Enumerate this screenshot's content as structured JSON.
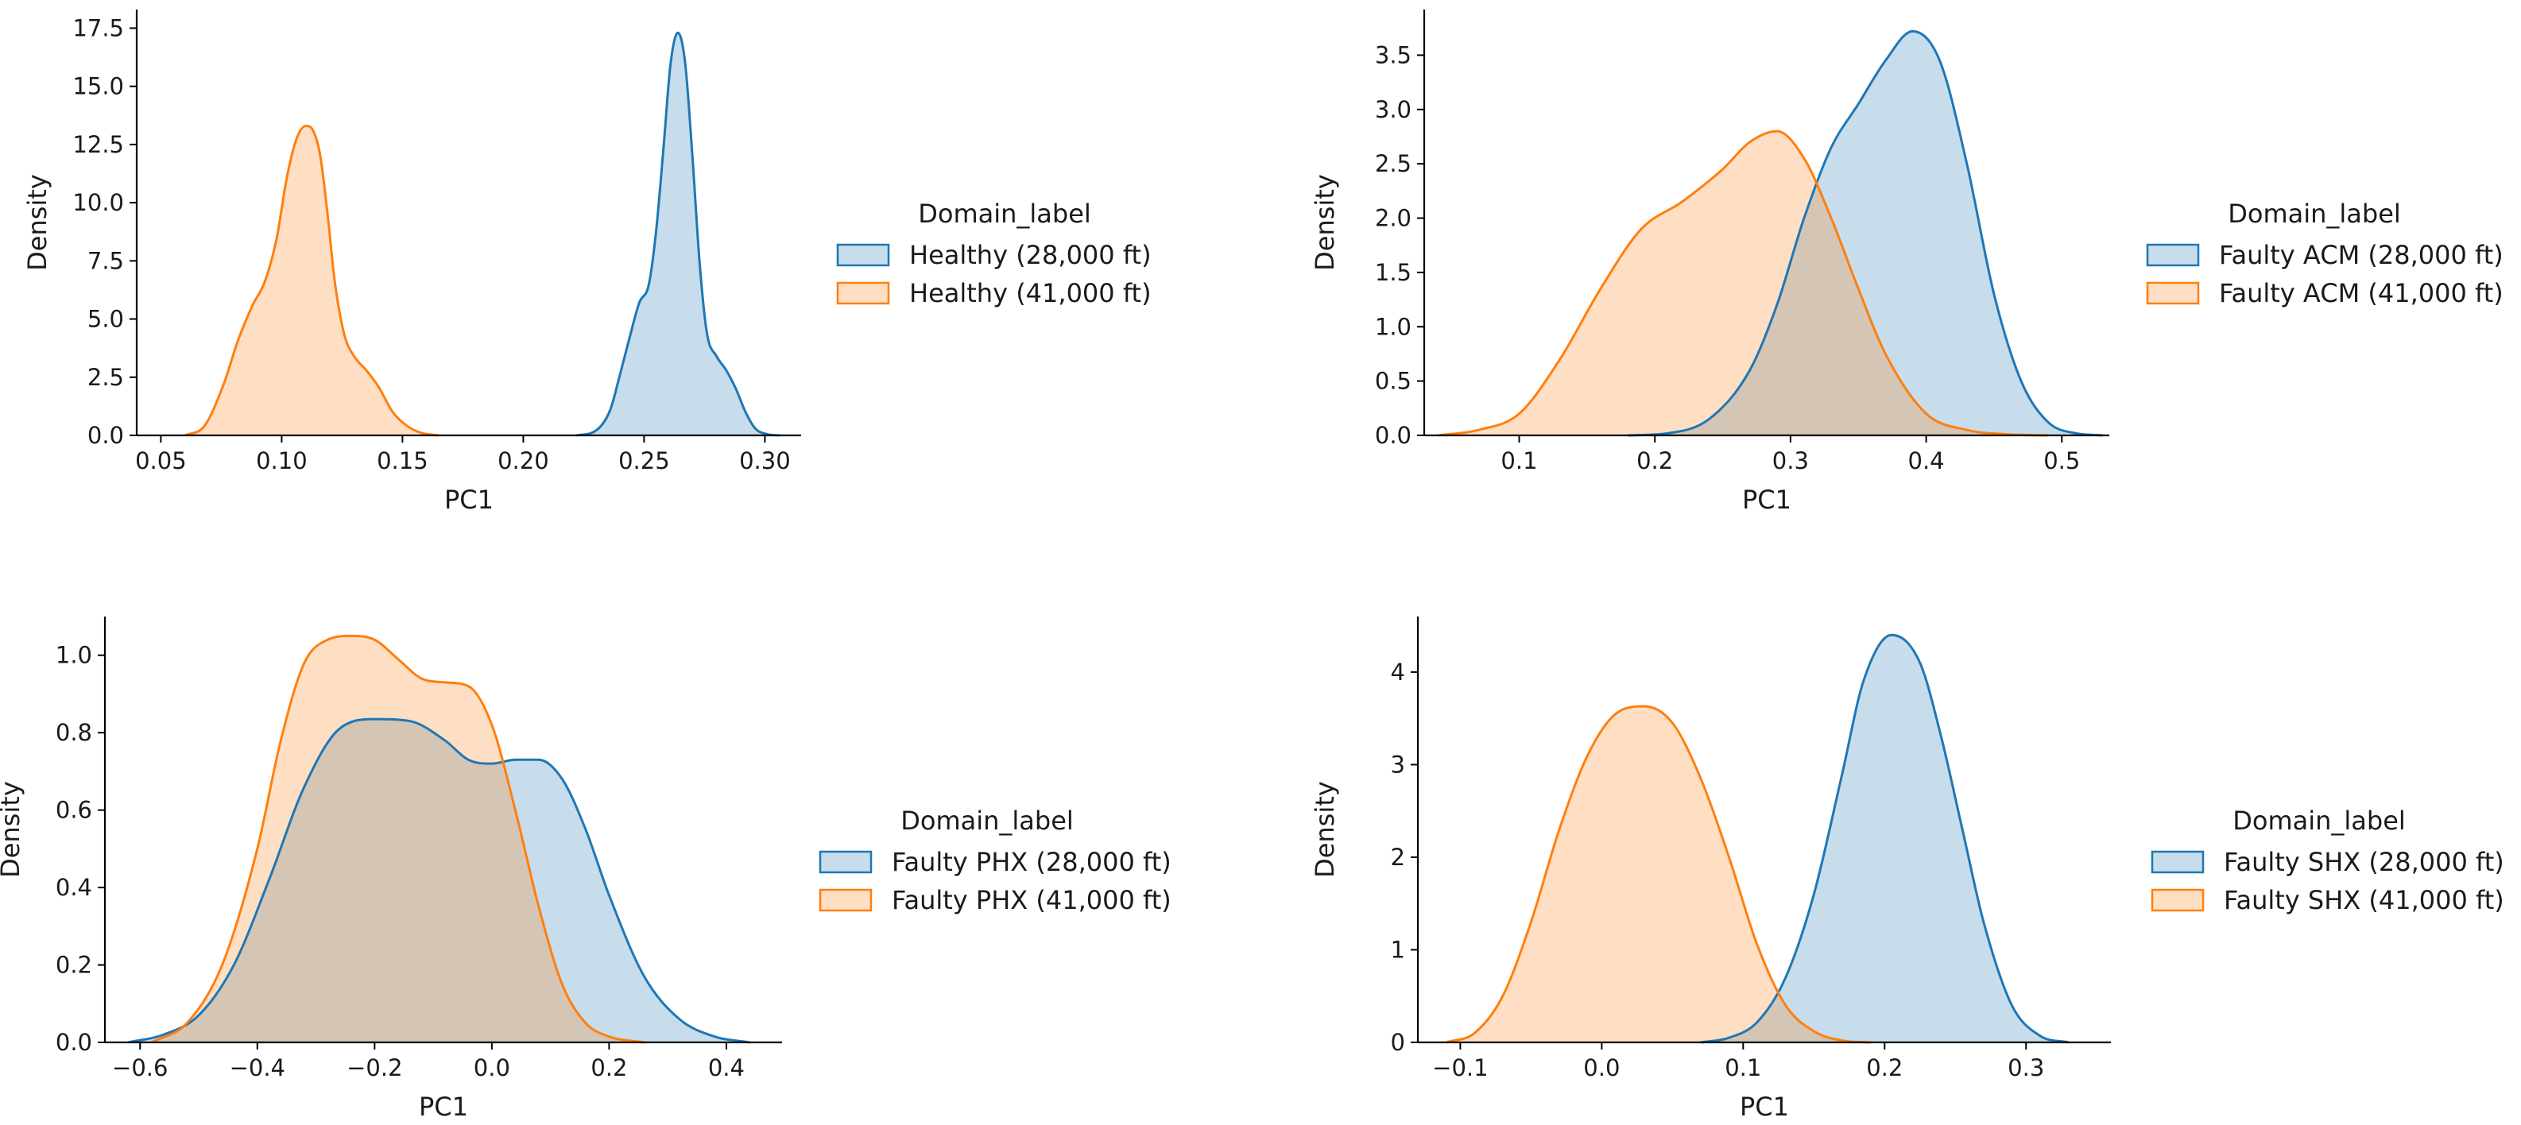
{
  "chart_data": [
    {
      "type": "area",
      "subtype": "kde",
      "xlabel": "PC1",
      "ylabel": "Density",
      "xlim": [
        0.04,
        0.315
      ],
      "ylim": [
        0,
        18.3
      ],
      "xticks": [
        0.05,
        0.1,
        0.15,
        0.2,
        0.25,
        0.3
      ],
      "xtick_labels": [
        "0.05",
        "0.10",
        "0.15",
        "0.20",
        "0.25",
        "0.30"
      ],
      "yticks": [
        0,
        2.5,
        5,
        7.5,
        10,
        12.5,
        15,
        17.5
      ],
      "ytick_labels": [
        "0.0",
        "2.5",
        "5.0",
        "7.5",
        "10.0",
        "12.5",
        "15.0",
        "17.5"
      ],
      "legend_title": "Domain_label",
      "legend_position": "right-outside",
      "grid": false,
      "series": [
        {
          "name": "Healthy (28,000 ft)",
          "color": "#1f77b4",
          "x": [
            0.222,
            0.23,
            0.236,
            0.24,
            0.244,
            0.248,
            0.252,
            0.255,
            0.258,
            0.261,
            0.264,
            0.267,
            0.27,
            0.273,
            0.276,
            0.28,
            0.284,
            0.288,
            0.292,
            0.296,
            0.301,
            0.306
          ],
          "y": [
            0.0,
            0.2,
            1.1,
            2.6,
            4.2,
            5.7,
            6.5,
            8.8,
            12.3,
            16.0,
            17.3,
            16.0,
            12.0,
            7.4,
            4.4,
            3.4,
            2.8,
            2.0,
            1.0,
            0.3,
            0.05,
            0.0
          ]
        },
        {
          "name": "Healthy (41,000 ft)",
          "color": "#ff7f0e",
          "x": [
            0.06,
            0.068,
            0.076,
            0.082,
            0.088,
            0.093,
            0.098,
            0.102,
            0.106,
            0.11,
            0.113,
            0.116,
            0.119,
            0.122,
            0.126,
            0.13,
            0.135,
            0.14,
            0.146,
            0.152,
            0.158,
            0.165
          ],
          "y": [
            0.0,
            0.4,
            2.2,
            4.1,
            5.6,
            6.6,
            8.5,
            11.0,
            12.7,
            13.3,
            13.1,
            12.0,
            9.5,
            6.6,
            4.3,
            3.4,
            2.8,
            2.1,
            1.0,
            0.4,
            0.1,
            0.0
          ]
        }
      ]
    },
    {
      "type": "area",
      "subtype": "kde",
      "xlabel": "PC1",
      "ylabel": "Density",
      "xlim": [
        0.03,
        0.535
      ],
      "ylim": [
        0,
        3.92
      ],
      "xticks": [
        0.1,
        0.2,
        0.3,
        0.4,
        0.5
      ],
      "xtick_labels": [
        "0.1",
        "0.2",
        "0.3",
        "0.4",
        "0.5"
      ],
      "yticks": [
        0,
        0.5,
        1.0,
        1.5,
        2.0,
        2.5,
        3.0,
        3.5
      ],
      "ytick_labels": [
        "0.0",
        "0.5",
        "1.0",
        "1.5",
        "2.0",
        "2.5",
        "3.0",
        "3.5"
      ],
      "legend_title": "Domain_label",
      "legend_position": "right-outside",
      "grid": false,
      "series": [
        {
          "name": "Faulty ACM (28,000 ft)",
          "color": "#1f77b4",
          "x": [
            0.18,
            0.21,
            0.24,
            0.27,
            0.29,
            0.31,
            0.33,
            0.35,
            0.37,
            0.39,
            0.41,
            0.43,
            0.45,
            0.47,
            0.49,
            0.51,
            0.53
          ],
          "y": [
            0.0,
            0.02,
            0.15,
            0.6,
            1.2,
            2.0,
            2.65,
            3.05,
            3.45,
            3.72,
            3.45,
            2.5,
            1.3,
            0.5,
            0.12,
            0.02,
            0.0
          ]
        },
        {
          "name": "Faulty ACM (41,000 ft)",
          "color": "#ff7f0e",
          "x": [
            0.04,
            0.07,
            0.1,
            0.13,
            0.16,
            0.19,
            0.22,
            0.25,
            0.27,
            0.29,
            0.31,
            0.33,
            0.35,
            0.37,
            0.4,
            0.43,
            0.46,
            0.49
          ],
          "y": [
            0.0,
            0.05,
            0.2,
            0.7,
            1.35,
            1.9,
            2.15,
            2.45,
            2.7,
            2.8,
            2.55,
            2.0,
            1.35,
            0.75,
            0.2,
            0.05,
            0.01,
            0.0
          ]
        }
      ]
    },
    {
      "type": "area",
      "subtype": "kde",
      "xlabel": "PC1",
      "ylabel": "Density",
      "xlim": [
        -0.66,
        0.495
      ],
      "ylim": [
        0,
        1.1
      ],
      "xticks": [
        -0.6,
        -0.4,
        -0.2,
        0.0,
        0.2,
        0.4
      ],
      "xtick_labels": [
        "−0.6",
        "−0.4",
        "−0.2",
        "0.0",
        "0.2",
        "0.4"
      ],
      "yticks": [
        0,
        0.2,
        0.4,
        0.6,
        0.8,
        1.0
      ],
      "ytick_labels": [
        "0.0",
        "0.2",
        "0.4",
        "0.6",
        "0.8",
        "1.0"
      ],
      "legend_title": "Domain_label",
      "legend_position": "right-outside",
      "grid": false,
      "series": [
        {
          "name": "Faulty PHX (28,000 ft)",
          "color": "#1f77b4",
          "x": [
            -0.62,
            -0.56,
            -0.5,
            -0.44,
            -0.38,
            -0.32,
            -0.26,
            -0.2,
            -0.14,
            -0.08,
            -0.04,
            0.0,
            0.04,
            0.08,
            0.12,
            0.16,
            0.2,
            0.26,
            0.32,
            0.38,
            0.44
          ],
          "y": [
            0.0,
            0.02,
            0.07,
            0.2,
            0.42,
            0.66,
            0.81,
            0.835,
            0.83,
            0.78,
            0.73,
            0.72,
            0.73,
            0.73,
            0.68,
            0.55,
            0.38,
            0.17,
            0.06,
            0.015,
            0.0
          ]
        },
        {
          "name": "Faulty PHX (41,000 ft)",
          "color": "#ff7f0e",
          "x": [
            -0.58,
            -0.52,
            -0.46,
            -0.4,
            -0.36,
            -0.32,
            -0.28,
            -0.24,
            -0.2,
            -0.16,
            -0.12,
            -0.08,
            -0.04,
            0.0,
            0.04,
            0.08,
            0.12,
            0.16,
            0.2,
            0.26
          ],
          "y": [
            0.0,
            0.05,
            0.2,
            0.5,
            0.78,
            0.98,
            1.04,
            1.05,
            1.04,
            0.99,
            0.94,
            0.93,
            0.92,
            0.82,
            0.6,
            0.35,
            0.15,
            0.05,
            0.015,
            0.0
          ]
        }
      ]
    },
    {
      "type": "area",
      "subtype": "kde",
      "xlabel": "PC1",
      "ylabel": "Density",
      "xlim": [
        -0.13,
        0.36
      ],
      "ylim": [
        0,
        4.6
      ],
      "xticks": [
        -0.1,
        0.0,
        0.1,
        0.2,
        0.3
      ],
      "xtick_labels": [
        "−0.1",
        "0.0",
        "0.1",
        "0.2",
        "0.3"
      ],
      "yticks": [
        0,
        1,
        2,
        3,
        4
      ],
      "ytick_labels": [
        "0",
        "1",
        "2",
        "3",
        "4"
      ],
      "legend_title": "Domain_label",
      "legend_position": "right-outside",
      "grid": false,
      "series": [
        {
          "name": "Faulty SHX (28,000 ft)",
          "color": "#1f77b4",
          "x": [
            0.07,
            0.09,
            0.11,
            0.13,
            0.15,
            0.17,
            0.185,
            0.205,
            0.225,
            0.24,
            0.255,
            0.27,
            0.29,
            0.31,
            0.33
          ],
          "y": [
            0.0,
            0.05,
            0.22,
            0.7,
            1.6,
            2.9,
            3.9,
            4.4,
            4.1,
            3.3,
            2.3,
            1.3,
            0.4,
            0.07,
            0.0
          ]
        },
        {
          "name": "Faulty SHX (41,000 ft)",
          "color": "#ff7f0e",
          "x": [
            -0.11,
            -0.09,
            -0.07,
            -0.05,
            -0.03,
            -0.01,
            0.01,
            0.03,
            0.05,
            0.07,
            0.09,
            0.11,
            0.13,
            0.15,
            0.17,
            0.19
          ],
          "y": [
            0.0,
            0.1,
            0.5,
            1.3,
            2.3,
            3.1,
            3.55,
            3.63,
            3.45,
            2.85,
            2.0,
            1.05,
            0.4,
            0.12,
            0.02,
            0.0
          ]
        }
      ]
    }
  ]
}
